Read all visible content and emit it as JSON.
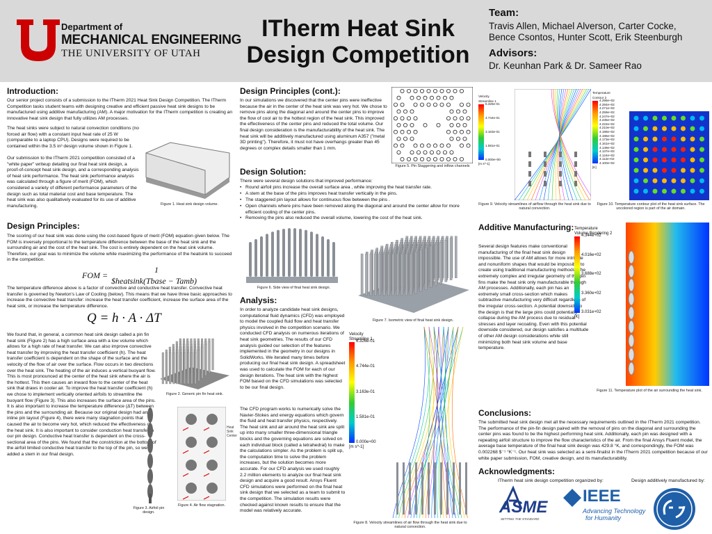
{
  "header": {
    "logo": {
      "line1": "Department of",
      "line2": "MECHANICAL ENGINEERING",
      "line3": "THE UNIVERSITY OF UTAH"
    },
    "title": "ITherm Heat Sink Design Competition",
    "team_heading": "Team:",
    "team": [
      "Travis Allen, Michael Alverson, Carter Cocke,",
      "Bence Csontos, Hunter Scott, Erik Steenburgh"
    ],
    "advisors_heading": "Advisors:",
    "advisors": "Dr. Keunhan Park & Dr. Sameer Rao"
  },
  "introduction": {
    "heading": "Introduction:",
    "paragraphs": [
      "Our senior project consists of a submission to the ITherm 2021 Heat Sink Design Competition. The ITherm Competition tasks student teams with designing creative and efficient passive heat sink designs to be manufactured using additive manufacturing (AM). A major motivation for the ITherm competition is creating an innovative heat sink design that fully utilizes AM processes.",
      "The heat sinks were subject to natural convection conditions (no forced air flow) with a constant input heat rate of 25 W (comparable to a laptop CPU). Designs were required to be contained within the 3.5 in³ design volume shown in Figure 1.",
      "Our submission to the ITherm 2021 competition consisted of a \"white paper\" writeup detailing our final heat sink design, a proof-of-concept heat sink design, and a corresponding analysis of heat sink performance. The heat sink performance analysis was calculated through a figure of merit (FOM), which considered a variety of different performance parameters of the design such as total material cost and base temperature. The heat sink was also qualitatively evaluated for its use of additive manufacturing."
    ]
  },
  "design_principles": {
    "heading": "Design Principles:",
    "paragraphs": [
      "The scoring of our heat sink was done using the cost-based figure of merit (FOM) equation given below. The FOM is inversely proportional to the temperature difference between the base of the heat sink and the surrounding air and the cost of the heat sink. The cost is entirely dependent on the heat sink volume. Therefore, our goal was to minimize the volume while maximizing the performance of the heatsink to succeed in the competition.",
      "The temperature difference above is a factor of convective and conductive heat transfer. Convective heat transfer is governed by Newton's Law of Cooling (below). This means that we have three basic approaches to increase the convective heat transfer: increase the heat transfer coefficient, increase the surface area of the heat sink, or increase the temperature difference.",
      "We found that, in general, a common heat sink design called a pin fin heat sink (Figure 2) has a high surface area with a low volume which allows for a high rate of heat transfer. We can also improve convective heat transfer by improving the heat transfer coefficient (h). The heat transfer coefficient is dependent on the shape of the surface and the velocity of the flow of air over the surface. Flow occurs in two directions over the heat sink. The heating of the air induces a vertical buoyant flow. This is most pronounced at the center of the heat sink where the air is the hottest. This then causes an inward flow to the center of the heat sink that draws in cooler air. To improve the heat transfer coefficient (h) we chose to implement vertically oriented airfoils to streamline the buoyant flow (Figure 3). This also increases the surface area of the pins. It is also important to increase the temperature difference (ΔT) between the pins and the surrounding air. Because our original design had an inline pin layout (Figure 4), there were many stagnation points that caused the air to become very hot, which reduced the effectiveness of the heat sink. It is also important to consider conduction heat transfer in our pin design. Conductive heat transfer is dependent on the cross-sectional area of the pins. We found that the constriction at the bottom of the airfoil limited conductive heat transfer to the top of the pin, so we added a stem in our final design."
    ],
    "fom": {
      "lhs": "FOM =",
      "numerator": "1",
      "denominator": "$heatsink(Tbase − Tamb)"
    },
    "newton": "Q = h · A · ΔT"
  },
  "design_principles_cont": {
    "heading": "Design Principles (cont.):",
    "paragraph": "In our simulations we discovered that the center pins were ineffective because the air in the center of the heat sink was very hot. We chose to remove pins along the diagonal and around the center pins to improve the flow of cool air to the hottest region of the heat sink. This improved the effectiveness of the center pins and reduced the total volume. Our final design consideration is the manufacturability of the heat sink. The heat sink will be additively manufactured using aluminum A357 (\"metal 3D printing\"). Therefore, it must not have overhangs greater than 45 degrees or complex details smaller than 1 mm."
  },
  "design_solution": {
    "heading": "Design Solution:",
    "intro": "There were several design solutions that improved performance:",
    "bullets": [
      "Round airfoil pins increase the overall surface area , while improving the heat transfer rate.",
      "A stem at the base of the pins improves heat transfer vertically in the pins.",
      "The staggered pin layout allows for continuous flow between the pins .",
      "Open channels where pins have been removed along the diagonal and around the center allow for more efficient cooling of the center pins.",
      "Removing the pins also reduced the overall volume, lowering the cost of the heat sink."
    ]
  },
  "analysis": {
    "heading": "Analysis:",
    "paragraphs": [
      "In order to analyze candidate heat sink designs, computational fluid dynamics (CFD) was employed to model the coupled fluid flow and heat transfer physics involved in the competition scenario. We conducted CFD analysis on numerous iterations of heat sink geometries. The results of our CFD analysis guided our selection of the features implemented in the geometry in our designs in SolidWorks. We iterated many times before producing our final heat sink design. A spreadsheet was used to calculate the FOM for each of our design iterations. The heat sink with the highest FOM based on the CFD simulations was selected to be our final design.",
      "The CFD program works to numerically solve the Navier-Stokes and energy equations which govern the fluid and heat transfer physics, respectively. The heat sink and air around the heat sink are split up into many smaller three-dimensional triangle blocks and the governing equations are solved on each individual block (called a tetrahedral) to make the calculations simpler. As the problem is split up, the computation time to solve the problem increases, but the solution becomes more accurate. For our CFD analysis we used roughly 2.2 million elements to analyze our final heat sink design and acquire a good result. Ansys Fluent CFD simulations were performed on the final heat sink design that we selected as a team to submit to the competition. The simulation results were checked against known results to ensure that the model was relatively accurate."
    ]
  },
  "additive_manufacturing": {
    "heading": "Additive Manufacturing:",
    "paragraph": "Several design features make conventional manufacturing of the final heat sink design impossible. The use of AM allows for more intricate and nonuniform shapes that would be impossible to create using traditional manufacturing methods. The extremely complex and irregular geometry of the pin fins make the heat sink only manufacturable through AM processes. Additionally, each pin has an extremely small cross-section which makes subtractive manufacturing very difficult regardless of the irregular cross-section. A potential downside to the design is that the large pins could potentially collapse during the AM process due to residual stresses and layer recoating. Even with this potential downside considered, our design satisfies a multitude of other AM design considerations while still minimizing both heat sink volume and base temperature."
  },
  "conclusions": {
    "heading": "Conclusions:",
    "paragraph": "The submitted heat sink design met all the necessary requirements outlined in the ITherm 2021 competition. The performance of the pin-fin design paired with the removal of pins on the diagonal and surrounding the center pins was found to be the highest performing heat sink. Additionally, each pin was designed with a repeating airfoil structure to improve the flow characteristics of the air. From the final Ansys Fluent model, the average base temperature of the final heat sink design was 429.8 °K, and correspondingly, the FOM was 0.002268 $⁻¹ °K⁻¹. Our heat sink was selected as a semi-finalist in the ITherm 2021 competition because of our white paper submission, FOM, creative design, and its manufacturability."
  },
  "acknowledgments": {
    "heading": "Acknowledgments:",
    "organized_by": "ITherm heat sink design competition organized by:",
    "manufactured_by": "Design additively manufactured by:",
    "asme": "ASME",
    "asme_tagline": "SETTING THE STANDARD",
    "ieee": "IEEE",
    "ieee_tagline": [
      "Advancing Technology",
      "for Humanity"
    ]
  },
  "figures": {
    "fig1": "Figure 1. Heat sink design volume.",
    "fig2": "Figure 2. Generic pin fin heat sink.",
    "fig3": "Figure 3. Airfoil pin design.",
    "fig4": "Figure 4. Air flow stagnation.",
    "fig4_labels": [
      "Outer Edge",
      "Heat Sink Center"
    ],
    "fig5": "Figure 5. Pin Staggering and inflow channels",
    "fig6": "Figure 6. Side view of final heat sink design.",
    "fig7": "Figure 7. Isometric view of final heat sink design.",
    "fig8": "Figure 8. Velocity streamlines of air flow through the heat sink due to natural convection.",
    "fig9": "Figure 9. Velocity streamlines of airflow through the heat sink due to natural convection.",
    "fig10": "Figure 10. Temperature contour plot of the heat sink surface. The uncolored region is part of the air domain.",
    "fig11": "Figure 11. Temperature plot of the air surrounding the heat sink."
  },
  "colorbars": {
    "velocity": {
      "title": [
        "Velocity",
        "Streamline 1"
      ],
      "labels": [
        "6.326e-01",
        "4.744e-01",
        "3.163e-01",
        "1.581e-01",
        "0.000e+00"
      ],
      "unit": "[m s^-1]"
    },
    "contour": {
      "title": [
        "Temperature",
        "Contour 2"
      ],
      "labels": [
        "4.296e+02",
        "4.284e+02",
        "4.271e+02",
        "4.259e+02",
        "4.247e+02",
        "4.235e+02",
        "4.222e+02",
        "4.210e+02",
        "4.198e+02",
        "4.186e+02",
        "4.173e+02",
        "4.161e+02",
        "4.149e+02",
        "4.137e+02",
        "4.124e+02",
        "4.112e+02",
        "4.100e+02"
      ],
      "unit": "[K]"
    },
    "volume": {
      "title": [
        "Temperature",
        "Volume Rendering 2"
      ],
      "labels": [
        "4.344e+02",
        "4.016e+02",
        "3.688e+02",
        "3.360e+02",
        "3.031e+02"
      ],
      "unit": "[K]"
    }
  }
}
